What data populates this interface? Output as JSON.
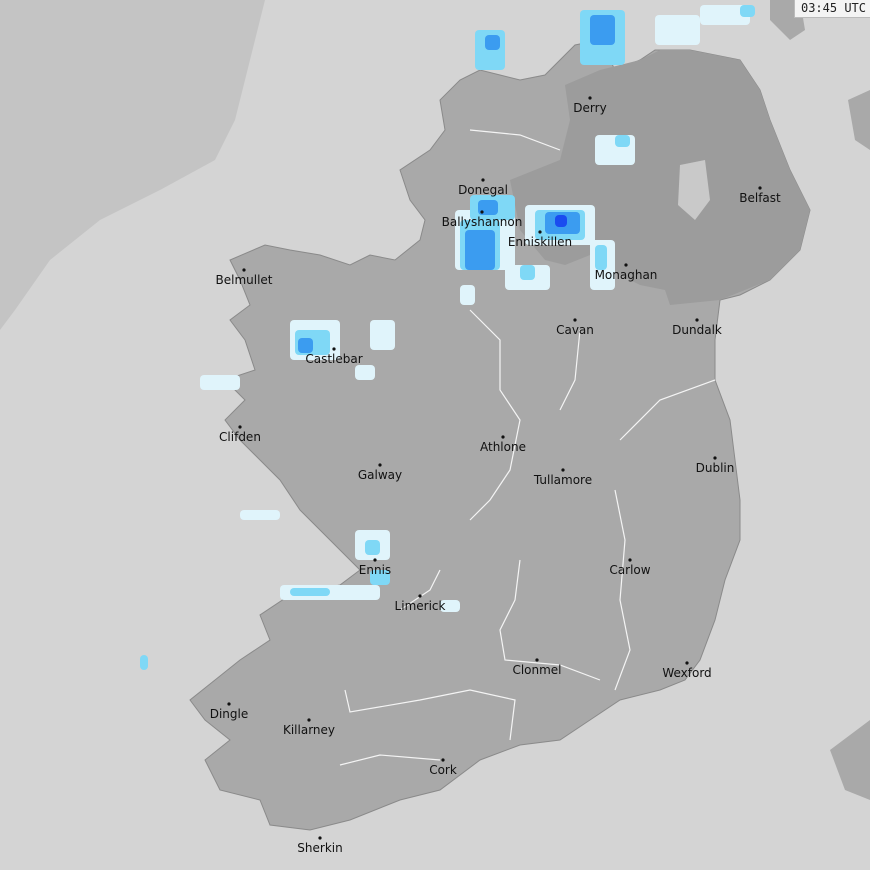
{
  "timestamp": "03:45 UTC",
  "colors": {
    "sea": "#d4d4d4",
    "out_of_range": "#c4c4c4",
    "land_roi": "#a9a9a9",
    "land_ni": "#9c9c9c",
    "rain_light": "#e0f4fb",
    "rain_moderate": "#7fd8f6",
    "rain_heavy": "#3b9cf0",
    "rain_very_heavy": "#1a4cf0"
  },
  "cities": [
    {
      "name": "Derry"
    },
    {
      "name": "Belfast"
    },
    {
      "name": "Donegal"
    },
    {
      "name": "Ballyshannon"
    },
    {
      "name": "Enniskillen"
    },
    {
      "name": "Monaghan"
    },
    {
      "name": "Belmullet"
    },
    {
      "name": "Cavan"
    },
    {
      "name": "Dundalk"
    },
    {
      "name": "Castlebar"
    },
    {
      "name": "Clifden"
    },
    {
      "name": "Athlone"
    },
    {
      "name": "Galway"
    },
    {
      "name": "Tullamore"
    },
    {
      "name": "Dublin"
    },
    {
      "name": "Ennis"
    },
    {
      "name": "Carlow"
    },
    {
      "name": "Limerick"
    },
    {
      "name": "Clonmel"
    },
    {
      "name": "Wexford"
    },
    {
      "name": "Dingle"
    },
    {
      "name": "Killarney"
    },
    {
      "name": "Cork"
    },
    {
      "name": "Sherkin"
    }
  ]
}
